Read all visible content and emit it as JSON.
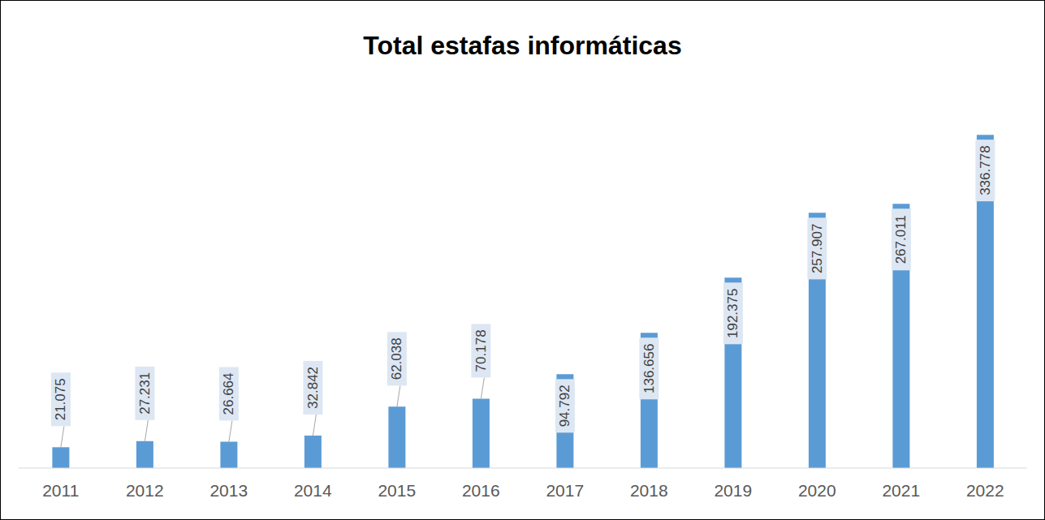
{
  "chart_data": {
    "type": "bar",
    "title": "Total estafas informáticas",
    "categories": [
      "2011",
      "2012",
      "2013",
      "2014",
      "2015",
      "2016",
      "2017",
      "2018",
      "2019",
      "2020",
      "2021",
      "2022"
    ],
    "values": [
      21075,
      27231,
      26664,
      32842,
      62038,
      70178,
      94792,
      136656,
      192375,
      257907,
      267011,
      336778
    ],
    "value_labels": [
      "21.075",
      "27.231",
      "26.664",
      "32.842",
      "62.038",
      "70.178",
      "94.792",
      "136.656",
      "192.375",
      "257.907",
      "267.011",
      "336.778"
    ],
    "color": "#5b9bd5",
    "ylim": [
      0,
      350000
    ],
    "data_labels": true,
    "tick_labels": "x",
    "grid": false
  }
}
